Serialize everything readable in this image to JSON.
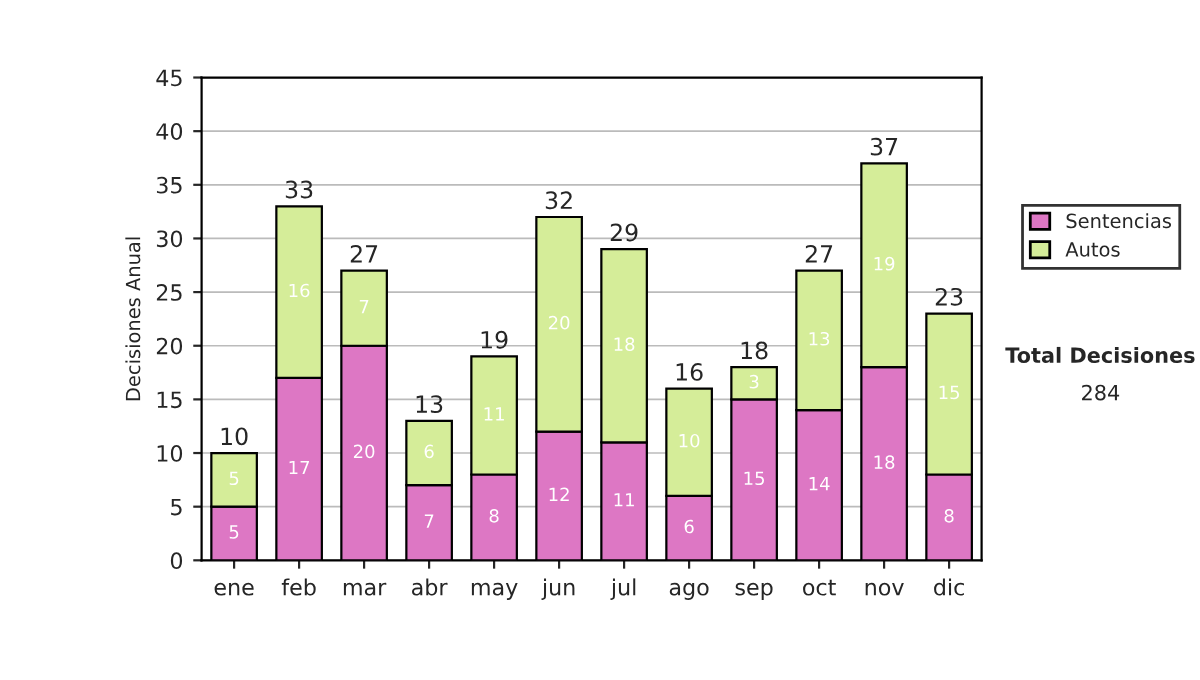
{
  "chart_data": {
    "type": "bar",
    "stacked": true,
    "ylabel": "Decisiones Anual",
    "categories": [
      "ene",
      "feb",
      "mar",
      "abr",
      "may",
      "jun",
      "jul",
      "ago",
      "sep",
      "oct",
      "nov",
      "dic"
    ],
    "series": [
      {
        "name": "Sentencias",
        "color": "#dd77c4",
        "values": [
          5,
          17,
          20,
          7,
          8,
          12,
          11,
          6,
          15,
          14,
          18,
          8
        ]
      },
      {
        "name": "Autos",
        "color": "#d5ed99",
        "values": [
          5,
          16,
          7,
          6,
          11,
          20,
          18,
          10,
          3,
          13,
          19,
          15
        ]
      }
    ],
    "totals": [
      "10",
      "33",
      "27",
      "13",
      "19",
      "32",
      "29",
      "16",
      "18",
      "27",
      "37",
      "23"
    ],
    "data_labels": true,
    "ylim": [
      0,
      45
    ],
    "yticks": [
      0,
      5,
      10,
      15,
      20,
      25,
      30,
      35,
      40,
      45
    ],
    "grid": "y",
    "legend": "right",
    "annotations": [
      "Total Decisiones",
      "284"
    ]
  }
}
